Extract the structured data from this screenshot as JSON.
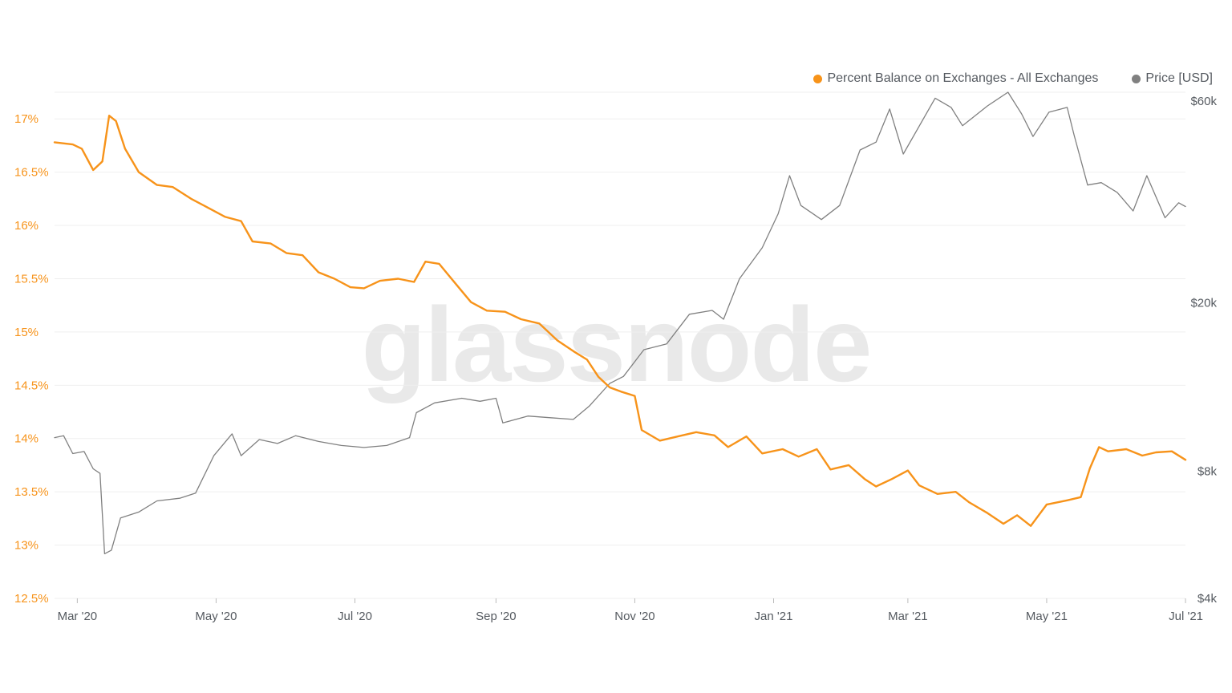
{
  "watermark": "glassnode",
  "colors": {
    "balance": "#f7931a",
    "price": "#808080",
    "grid": "#efefef"
  },
  "legend": [
    {
      "label": "Percent Balance on Exchanges - All Exchanges",
      "color": "#f7931a"
    },
    {
      "label": "Price [USD]",
      "color": "#808080"
    }
  ],
  "chart_data": {
    "type": "line",
    "title": "",
    "xlabel": "",
    "ylabel": "",
    "grid": true,
    "legend_position": "top-right",
    "x_range": [
      "2020-02-20",
      "2021-07-01"
    ],
    "x_ticks": [
      {
        "date": "2020-03-01",
        "label": "Mar '20"
      },
      {
        "date": "2020-05-01",
        "label": "May '20"
      },
      {
        "date": "2020-07-01",
        "label": "Jul '20"
      },
      {
        "date": "2020-09-01",
        "label": "Sep '20"
      },
      {
        "date": "2020-11-01",
        "label": "Nov '20"
      },
      {
        "date": "2021-01-01",
        "label": "Jan '21"
      },
      {
        "date": "2021-03-01",
        "label": "Mar '21"
      },
      {
        "date": "2021-05-01",
        "label": "May '21"
      },
      {
        "date": "2021-07-01",
        "label": "Jul '21"
      }
    ],
    "y_left": {
      "range": [
        12.5,
        17.25
      ],
      "ticks": [
        {
          "value": 17,
          "label": "17%"
        },
        {
          "value": 16.5,
          "label": "16.5%"
        },
        {
          "value": 16,
          "label": "16%"
        },
        {
          "value": 15.5,
          "label": "15.5%"
        },
        {
          "value": 15,
          "label": "15%"
        },
        {
          "value": 14.5,
          "label": "14.5%"
        },
        {
          "value": 14,
          "label": "14%"
        },
        {
          "value": 13.5,
          "label": "13.5%"
        },
        {
          "value": 13,
          "label": "13%"
        },
        {
          "value": 12.5,
          "label": "12.5%"
        }
      ]
    },
    "y_right": {
      "scale": "log",
      "range": [
        4000,
        63000
      ],
      "ticks": [
        {
          "value": 60000,
          "label": "$60k"
        },
        {
          "value": 20000,
          "label": "$20k"
        },
        {
          "value": 8000,
          "label": "$8k"
        },
        {
          "value": 4000,
          "label": "$4k"
        }
      ]
    },
    "series": [
      {
        "name": "Percent Balance on Exchanges - All Exchanges",
        "axis": "left",
        "points": [
          [
            "2020-02-20",
            16.78
          ],
          [
            "2020-02-28",
            16.76
          ],
          [
            "2020-03-03",
            16.72
          ],
          [
            "2020-03-08",
            16.52
          ],
          [
            "2020-03-12",
            16.6
          ],
          [
            "2020-03-15",
            17.03
          ],
          [
            "2020-03-18",
            16.98
          ],
          [
            "2020-03-22",
            16.72
          ],
          [
            "2020-03-28",
            16.5
          ],
          [
            "2020-04-05",
            16.38
          ],
          [
            "2020-04-12",
            16.36
          ],
          [
            "2020-04-20",
            16.25
          ],
          [
            "2020-04-28",
            16.16
          ],
          [
            "2020-05-05",
            16.08
          ],
          [
            "2020-05-12",
            16.04
          ],
          [
            "2020-05-17",
            15.85
          ],
          [
            "2020-05-25",
            15.83
          ],
          [
            "2020-06-01",
            15.74
          ],
          [
            "2020-06-08",
            15.72
          ],
          [
            "2020-06-15",
            15.56
          ],
          [
            "2020-06-22",
            15.5
          ],
          [
            "2020-06-29",
            15.42
          ],
          [
            "2020-07-05",
            15.41
          ],
          [
            "2020-07-12",
            15.48
          ],
          [
            "2020-07-20",
            15.5
          ],
          [
            "2020-07-27",
            15.47
          ],
          [
            "2020-08-01",
            15.66
          ],
          [
            "2020-08-07",
            15.64
          ],
          [
            "2020-08-14",
            15.46
          ],
          [
            "2020-08-21",
            15.28
          ],
          [
            "2020-08-28",
            15.2
          ],
          [
            "2020-09-05",
            15.19
          ],
          [
            "2020-09-12",
            15.12
          ],
          [
            "2020-09-20",
            15.08
          ],
          [
            "2020-09-28",
            14.92
          ],
          [
            "2020-10-05",
            14.82
          ],
          [
            "2020-10-11",
            14.74
          ],
          [
            "2020-10-16",
            14.58
          ],
          [
            "2020-10-21",
            14.48
          ],
          [
            "2020-10-26",
            14.44
          ],
          [
            "2020-11-01",
            14.4
          ],
          [
            "2020-11-04",
            14.08
          ],
          [
            "2020-11-12",
            13.98
          ],
          [
            "2020-11-20",
            14.02
          ],
          [
            "2020-11-28",
            14.06
          ],
          [
            "2020-12-06",
            14.03
          ],
          [
            "2020-12-12",
            13.92
          ],
          [
            "2020-12-20",
            14.02
          ],
          [
            "2020-12-27",
            13.86
          ],
          [
            "2021-01-05",
            13.9
          ],
          [
            "2021-01-12",
            13.83
          ],
          [
            "2021-01-20",
            13.9
          ],
          [
            "2021-01-26",
            13.71
          ],
          [
            "2021-02-03",
            13.75
          ],
          [
            "2021-02-10",
            13.62
          ],
          [
            "2021-02-15",
            13.55
          ],
          [
            "2021-02-22",
            13.62
          ],
          [
            "2021-03-01",
            13.7
          ],
          [
            "2021-03-06",
            13.56
          ],
          [
            "2021-03-14",
            13.48
          ],
          [
            "2021-03-22",
            13.5
          ],
          [
            "2021-03-28",
            13.4
          ],
          [
            "2021-04-05",
            13.3
          ],
          [
            "2021-04-12",
            13.2
          ],
          [
            "2021-04-18",
            13.28
          ],
          [
            "2021-04-24",
            13.18
          ],
          [
            "2021-05-01",
            13.38
          ],
          [
            "2021-05-10",
            13.42
          ],
          [
            "2021-05-16",
            13.45
          ],
          [
            "2021-05-20",
            13.72
          ],
          [
            "2021-05-24",
            13.92
          ],
          [
            "2021-05-28",
            13.88
          ],
          [
            "2021-06-05",
            13.9
          ],
          [
            "2021-06-12",
            13.84
          ],
          [
            "2021-06-18",
            13.87
          ],
          [
            "2021-06-25",
            13.88
          ],
          [
            "2021-07-01",
            13.8
          ]
        ]
      },
      {
        "name": "Price [USD]",
        "axis": "right",
        "points": [
          [
            "2020-02-20",
            9600
          ],
          [
            "2020-02-24",
            9700
          ],
          [
            "2020-02-28",
            8800
          ],
          [
            "2020-03-04",
            8900
          ],
          [
            "2020-03-08",
            8100
          ],
          [
            "2020-03-11",
            7900
          ],
          [
            "2020-03-13",
            5100
          ],
          [
            "2020-03-16",
            5200
          ],
          [
            "2020-03-20",
            6200
          ],
          [
            "2020-03-28",
            6400
          ],
          [
            "2020-04-05",
            6800
          ],
          [
            "2020-04-15",
            6900
          ],
          [
            "2020-04-22",
            7100
          ],
          [
            "2020-04-30",
            8700
          ],
          [
            "2020-05-08",
            9800
          ],
          [
            "2020-05-12",
            8700
          ],
          [
            "2020-05-20",
            9500
          ],
          [
            "2020-05-28",
            9300
          ],
          [
            "2020-06-05",
            9700
          ],
          [
            "2020-06-15",
            9400
          ],
          [
            "2020-06-25",
            9200
          ],
          [
            "2020-07-05",
            9100
          ],
          [
            "2020-07-15",
            9200
          ],
          [
            "2020-07-25",
            9600
          ],
          [
            "2020-07-28",
            11000
          ],
          [
            "2020-08-05",
            11600
          ],
          [
            "2020-08-17",
            11900
          ],
          [
            "2020-08-25",
            11700
          ],
          [
            "2020-09-01",
            11900
          ],
          [
            "2020-09-04",
            10400
          ],
          [
            "2020-09-15",
            10800
          ],
          [
            "2020-09-25",
            10700
          ],
          [
            "2020-10-05",
            10600
          ],
          [
            "2020-10-12",
            11400
          ],
          [
            "2020-10-21",
            12900
          ],
          [
            "2020-10-27",
            13400
          ],
          [
            "2020-11-05",
            15500
          ],
          [
            "2020-11-15",
            16000
          ],
          [
            "2020-11-25",
            18800
          ],
          [
            "2020-12-05",
            19200
          ],
          [
            "2020-12-10",
            18300
          ],
          [
            "2020-12-17",
            22800
          ],
          [
            "2020-12-27",
            27000
          ],
          [
            "2021-01-03",
            32500
          ],
          [
            "2021-01-08",
            40000
          ],
          [
            "2021-01-13",
            34000
          ],
          [
            "2021-01-22",
            31500
          ],
          [
            "2021-01-30",
            34000
          ],
          [
            "2021-02-08",
            46000
          ],
          [
            "2021-02-15",
            48000
          ],
          [
            "2021-02-21",
            57500
          ],
          [
            "2021-02-27",
            45000
          ],
          [
            "2021-03-13",
            61000
          ],
          [
            "2021-03-20",
            58000
          ],
          [
            "2021-03-25",
            52500
          ],
          [
            "2021-04-05",
            58500
          ],
          [
            "2021-04-14",
            63000
          ],
          [
            "2021-04-20",
            56000
          ],
          [
            "2021-04-25",
            49500
          ],
          [
            "2021-05-02",
            56500
          ],
          [
            "2021-05-10",
            58000
          ],
          [
            "2021-05-13",
            50000
          ],
          [
            "2021-05-19",
            38000
          ],
          [
            "2021-05-25",
            38500
          ],
          [
            "2021-06-01",
            36500
          ],
          [
            "2021-06-08",
            33000
          ],
          [
            "2021-06-14",
            40000
          ],
          [
            "2021-06-22",
            31800
          ],
          [
            "2021-06-28",
            34500
          ],
          [
            "2021-07-01",
            33800
          ]
        ]
      }
    ]
  }
}
